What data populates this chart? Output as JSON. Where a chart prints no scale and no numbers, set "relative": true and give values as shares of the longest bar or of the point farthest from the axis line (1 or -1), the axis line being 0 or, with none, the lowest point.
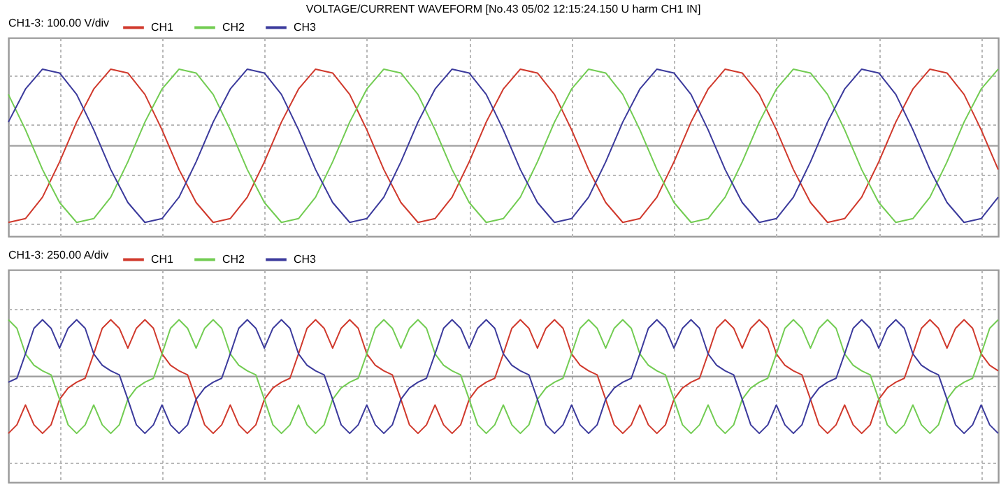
{
  "chart_data": [
    {
      "type": "line",
      "title": "VOLTAGE/CURRENT WAVEFORM [No.43 05/02 12:15:24.150  U harm  CH1  IN]",
      "legend_title": "CH1-3: 100.00 V/div",
      "relative": true,
      "grid": true,
      "legend": "top left",
      "tick_labels": false,
      "categories": [
        null,
        null,
        null,
        null,
        null,
        null,
        null,
        null,
        null,
        null,
        null,
        null,
        null,
        null,
        null,
        null,
        null,
        null,
        null,
        null,
        null,
        null,
        null,
        null,
        null,
        null,
        null,
        null,
        null,
        null,
        null,
        null,
        null,
        null,
        null,
        null,
        null,
        null,
        null,
        null,
        null,
        null,
        null,
        null,
        null,
        null,
        null,
        null,
        null,
        null,
        null,
        null,
        null,
        null,
        null,
        null,
        null,
        null,
        null
      ],
      "series": [
        {
          "name": "CH1",
          "color": "#d0392c",
          "values": [
            -1,
            -0.95,
            -0.67,
            -0.21,
            0.31,
            0.74,
            1,
            0.95,
            0.67,
            0.21,
            -0.31,
            -0.74,
            -1,
            -0.95,
            -0.67,
            -0.21,
            0.31,
            0.74,
            1,
            0.95,
            0.67,
            0.21,
            -0.31,
            -0.74,
            -1,
            -0.95,
            -0.67,
            -0.21,
            0.31,
            0.74,
            1,
            0.95,
            0.67,
            0.21,
            -0.31,
            -0.74,
            -1,
            -0.95,
            -0.67,
            -0.21,
            0.31,
            0.74,
            1,
            0.95,
            0.67,
            0.21,
            -0.31,
            -0.74,
            -1,
            -0.95,
            -0.67,
            -0.21,
            0.31,
            0.74,
            1,
            0.95,
            0.67,
            0.21,
            -0.31
          ]
        },
        {
          "name": "CH2",
          "color": "#72cc52",
          "values": [
            0.67,
            0.21,
            -0.31,
            -0.74,
            -1,
            -0.95,
            -0.67,
            -0.21,
            0.31,
            0.74,
            1,
            0.95,
            0.67,
            0.21,
            -0.31,
            -0.74,
            -1,
            -0.95,
            -0.67,
            -0.21,
            0.31,
            0.74,
            1,
            0.95,
            0.67,
            0.21,
            -0.31,
            -0.74,
            -1,
            -0.95,
            -0.67,
            -0.21,
            0.31,
            0.74,
            1,
            0.95,
            0.67,
            0.21,
            -0.31,
            -0.74,
            -1,
            -0.95,
            -0.67,
            -0.21,
            0.31,
            0.74,
            1,
            0.95,
            0.67,
            0.21,
            -0.31,
            -0.74,
            -1,
            -0.95,
            -0.67,
            -0.21,
            0.31,
            0.74,
            1
          ]
        },
        {
          "name": "CH3",
          "color": "#3b3a9c",
          "values": [
            0.31,
            0.74,
            1,
            0.95,
            0.67,
            0.21,
            -0.31,
            -0.74,
            -1,
            -0.95,
            -0.67,
            -0.21,
            0.31,
            0.74,
            1,
            0.95,
            0.67,
            0.21,
            -0.31,
            -0.74,
            -1,
            -0.95,
            -0.67,
            -0.21,
            0.31,
            0.74,
            1,
            0.95,
            0.67,
            0.21,
            -0.31,
            -0.74,
            -1,
            -0.95,
            -0.67,
            -0.21,
            0.31,
            0.74,
            1,
            0.95,
            0.67,
            0.21,
            -0.31,
            -0.74,
            -1,
            -0.95,
            -0.67,
            -0.21,
            0.31,
            0.74,
            1,
            0.95,
            0.67,
            0.21,
            -0.31,
            -0.74,
            -1,
            -0.95,
            -0.67
          ]
        }
      ]
    },
    {
      "type": "line",
      "legend_title": "CH1-3: 250.00 A/div",
      "relative": true,
      "grid": true,
      "legend": "top left",
      "tick_labels": false,
      "categories": [
        null,
        null,
        null,
        null,
        null,
        null,
        null,
        null,
        null,
        null,
        null,
        null,
        null,
        null,
        null,
        null,
        null,
        null,
        null,
        null,
        null,
        null,
        null,
        null,
        null,
        null,
        null,
        null,
        null,
        null,
        null,
        null,
        null,
        null,
        null,
        null,
        null,
        null,
        null,
        null,
        null,
        null,
        null,
        null,
        null,
        null,
        null,
        null,
        null,
        null,
        null,
        null,
        null,
        null,
        null,
        null,
        null,
        null,
        null,
        null,
        null,
        null,
        null,
        null,
        null,
        null,
        null,
        null,
        null,
        null,
        null,
        null,
        null,
        null,
        null,
        null,
        null,
        null,
        null,
        null,
        null,
        null,
        null,
        null,
        null,
        null,
        null,
        null,
        null,
        null,
        null,
        null,
        null,
        null,
        null,
        null,
        null,
        null,
        null,
        null,
        null,
        null,
        null,
        null,
        null,
        null,
        null,
        null,
        null,
        null,
        null,
        null,
        null,
        null,
        null,
        null,
        null
      ],
      "series": [
        {
          "name": "CH1",
          "color": "#d0392c",
          "values": [
            -1,
            -0.85,
            -0.5,
            -0.85,
            -1,
            -0.85,
            -0.4,
            -0.2,
            -0.1,
            -0.03,
            0.4,
            0.85,
            1,
            0.85,
            0.5,
            0.85,
            1,
            0.85,
            0.4,
            0.2,
            0.1,
            0.03,
            -0.4,
            -0.85,
            -1,
            -0.85,
            -0.5,
            -0.85,
            -1,
            -0.85,
            -0.4,
            -0.2,
            -0.1,
            -0.03,
            0.4,
            0.85,
            1,
            0.85,
            0.5,
            0.85,
            1,
            0.85,
            0.4,
            0.2,
            0.1,
            0.03,
            -0.4,
            -0.85,
            -1,
            -0.85,
            -0.5,
            -0.85,
            -1,
            -0.85,
            -0.4,
            -0.2,
            -0.1,
            -0.03,
            0.4,
            0.85,
            1,
            0.85,
            0.5,
            0.85,
            1,
            0.85,
            0.4,
            0.2,
            0.1,
            0.03,
            -0.4,
            -0.85,
            -1,
            -0.85,
            -0.5,
            -0.85,
            -1,
            -0.85,
            -0.4,
            -0.2,
            -0.1,
            -0.03,
            0.4,
            0.85,
            1,
            0.85,
            0.5,
            0.85,
            1,
            0.85,
            0.4,
            0.2,
            0.1,
            0.03,
            -0.4,
            -0.85,
            -1,
            -0.85,
            -0.5,
            -0.85,
            -1,
            -0.85,
            -0.4,
            -0.2,
            -0.1,
            -0.03,
            0.4,
            0.85,
            1,
            0.85,
            0.5,
            0.85,
            1,
            0.85,
            0.4,
            0.2,
            0.1
          ]
        },
        {
          "name": "CH2",
          "color": "#72cc52",
          "values": [
            1,
            0.85,
            0.4,
            0.2,
            0.1,
            0.03,
            -0.4,
            -0.85,
            -1,
            -0.85,
            -0.5,
            -0.85,
            -1,
            -0.85,
            -0.4,
            -0.2,
            -0.1,
            -0.03,
            0.4,
            0.85,
            1,
            0.85,
            0.5,
            0.85,
            1,
            0.85,
            0.4,
            0.2,
            0.1,
            0.03,
            -0.4,
            -0.85,
            -1,
            -0.85,
            -0.5,
            -0.85,
            -1,
            -0.85,
            -0.4,
            -0.2,
            -0.1,
            -0.03,
            0.4,
            0.85,
            1,
            0.85,
            0.5,
            0.85,
            1,
            0.85,
            0.4,
            0.2,
            0.1,
            0.03,
            -0.4,
            -0.85,
            -1,
            -0.85,
            -0.5,
            -0.85,
            -1,
            -0.85,
            -0.4,
            -0.2,
            -0.1,
            -0.03,
            0.4,
            0.85,
            1,
            0.85,
            0.5,
            0.85,
            1,
            0.85,
            0.4,
            0.2,
            0.1,
            0.03,
            -0.4,
            -0.85,
            -1,
            -0.85,
            -0.5,
            -0.85,
            -1,
            -0.85,
            -0.4,
            -0.2,
            -0.1,
            -0.03,
            0.4,
            0.85,
            1,
            0.85,
            0.5,
            0.85,
            1,
            0.85,
            0.4,
            0.2,
            0.1,
            0.03,
            -0.4,
            -0.85,
            -1,
            -0.85,
            -0.5,
            -0.85,
            -1,
            -0.85,
            -0.4,
            -0.2,
            -0.1,
            -0.03,
            0.4,
            0.85,
            1
          ]
        },
        {
          "name": "CH3",
          "color": "#3b3a9c",
          "values": [
            -0.1,
            -0.03,
            0.4,
            0.85,
            1,
            0.85,
            0.5,
            0.85,
            1,
            0.85,
            0.4,
            0.2,
            0.1,
            0.03,
            -0.4,
            -0.85,
            -1,
            -0.85,
            -0.5,
            -0.85,
            -1,
            -0.85,
            -0.4,
            -0.2,
            -0.1,
            -0.03,
            0.4,
            0.85,
            1,
            0.85,
            0.5,
            0.85,
            1,
            0.85,
            0.4,
            0.2,
            0.1,
            0.03,
            -0.4,
            -0.85,
            -1,
            -0.85,
            -0.5,
            -0.85,
            -1,
            -0.85,
            -0.4,
            -0.2,
            -0.1,
            -0.03,
            0.4,
            0.85,
            1,
            0.85,
            0.5,
            0.85,
            1,
            0.85,
            0.4,
            0.2,
            0.1,
            0.03,
            -0.4,
            -0.85,
            -1,
            -0.85,
            -0.5,
            -0.85,
            -1,
            -0.85,
            -0.4,
            -0.2,
            -0.1,
            -0.03,
            0.4,
            0.85,
            1,
            0.85,
            0.5,
            0.85,
            1,
            0.85,
            0.4,
            0.2,
            0.1,
            0.03,
            -0.4,
            -0.85,
            -1,
            -0.85,
            -0.5,
            -0.85,
            -1,
            -0.85,
            -0.4,
            -0.2,
            -0.1,
            -0.03,
            0.4,
            0.85,
            1,
            0.85,
            0.5,
            0.85,
            1,
            0.85,
            0.4,
            0.2,
            0.1,
            0.03,
            -0.4,
            -0.85,
            -1,
            -0.85,
            -0.5,
            -0.85,
            -1
          ]
        }
      ]
    }
  ]
}
